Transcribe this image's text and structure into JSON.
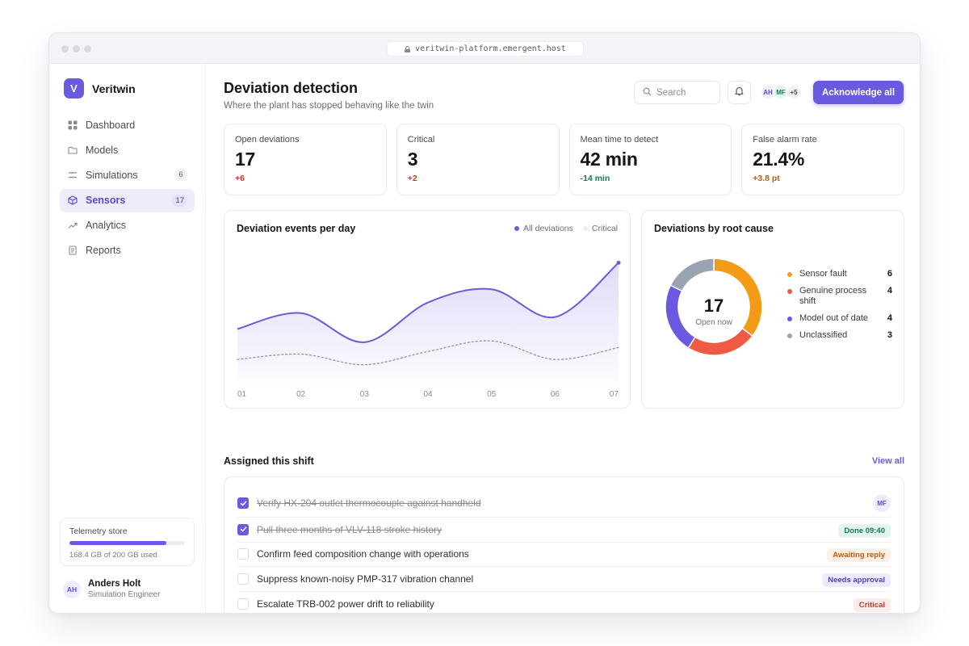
{
  "browser": {
    "url": "veritwin-platform.emergent.host"
  },
  "brand": {
    "initial": "V",
    "name": "Veritwin"
  },
  "sidebar": {
    "items": [
      {
        "label": "Dashboard",
        "icon": "grid-icon",
        "count": ""
      },
      {
        "label": "Models",
        "icon": "folder-icon",
        "count": ""
      },
      {
        "label": "Simulations",
        "icon": "simulation-icon",
        "count": "6"
      },
      {
        "label": "Sensors",
        "icon": "cube-icon",
        "count": "17",
        "active": true
      },
      {
        "label": "Analytics",
        "icon": "trend-icon",
        "count": ""
      },
      {
        "label": "Reports",
        "icon": "document-icon",
        "count": ""
      }
    ]
  },
  "storage": {
    "title": "Telemetry store",
    "used_text": "168.4 GB of 200 GB used",
    "fraction": 0.842
  },
  "user": {
    "initials": "AH",
    "name": "Anders Holt",
    "role": "Simulation Engineer"
  },
  "header": {
    "title": "Deviation detection",
    "subtitle": "Where the plant has stopped behaving like the twin",
    "search_placeholder": "Search",
    "avatars": [
      "AH",
      "MF",
      "+5"
    ],
    "ack_label": "Acknowledge all"
  },
  "kpis": [
    {
      "label": "Open deviations",
      "value": "17",
      "delta": "+6",
      "tone": "bad"
    },
    {
      "label": "Critical",
      "value": "3",
      "delta": "+2",
      "tone": "bad"
    },
    {
      "label": "Mean time to detect",
      "value": "42 min",
      "delta": "-14 min",
      "tone": "good"
    },
    {
      "label": "False alarm rate",
      "value": "21.4%",
      "delta": "+3.8 pt",
      "tone": "warn"
    }
  ],
  "colors": {
    "accent": "#6a5ae0",
    "bad": "#c0392b",
    "good": "#127a5a",
    "warn": "#c25a10"
  },
  "line_chart": {
    "title": "Deviation events per day",
    "legend": [
      "All deviations",
      "Critical"
    ]
  },
  "donut": {
    "title": "Deviations by root cause",
    "center_value": "17",
    "center_label": "Open now"
  },
  "chart_data": [
    {
      "type": "area",
      "title": "Deviation events per day",
      "x": [
        "01",
        "02",
        "03",
        "04",
        "05",
        "06",
        "07"
      ],
      "ylim": [
        0,
        10
      ],
      "series": [
        {
          "name": "All deviations",
          "values": [
            4.0,
            5.2,
            3.0,
            6.0,
            7.0,
            4.9,
            9.0
          ],
          "color": "#6a5ae0",
          "style": "solid-area"
        },
        {
          "name": "Critical",
          "values": [
            1.7,
            2.1,
            1.3,
            2.3,
            3.1,
            1.7,
            2.6
          ],
          "color": "#9a9aa6",
          "style": "dotted"
        }
      ],
      "grid": false,
      "legend": "top-right"
    },
    {
      "type": "pie",
      "title": "Deviations by root cause",
      "categories": [
        "Sensor fault",
        "Genuine process shift",
        "Model out of date",
        "Unclassified"
      ],
      "values": [
        6,
        4,
        4,
        3
      ],
      "colors": [
        "#f39a17",
        "#ef5a44",
        "#6a5ae0",
        "#9aa3b2"
      ],
      "donut": true,
      "legend": "right"
    }
  ],
  "tasks": {
    "title": "Assigned this shift",
    "view_all": "View all",
    "items": [
      {
        "text": "Verify HX-204 outlet thermocouple against handheld",
        "done": true,
        "tag": "MF",
        "tag_type": "avatar"
      },
      {
        "text": "Pull three months of VLV-118 stroke history",
        "done": true,
        "tag": "Done 09:40",
        "tag_type": "done"
      },
      {
        "text": "Confirm feed composition change with operations",
        "done": false,
        "tag": "Awaiting reply",
        "tag_type": "awaiting"
      },
      {
        "text": "Suppress known-noisy PMP-317 vibration channel",
        "done": false,
        "tag": "Needs approval",
        "tag_type": "approval"
      },
      {
        "text": "Escalate TRB-002 power drift to reliability",
        "done": false,
        "tag": "Critical",
        "tag_type": "critical"
      }
    ]
  }
}
